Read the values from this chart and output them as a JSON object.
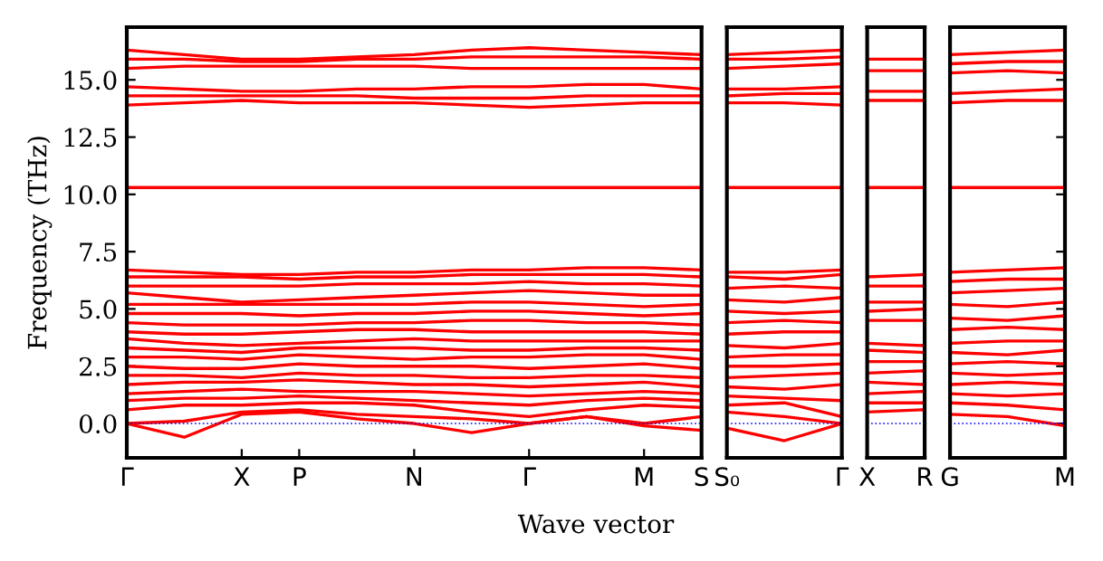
{
  "chart_data": [
    {
      "type": "line",
      "ylabel": "Frequency (THz)",
      "xlabel": "Wave vector",
      "ylim": [
        -1.5,
        17.3
      ],
      "categories": [
        "Γ",
        null,
        "X",
        "P",
        null,
        "N",
        null,
        "Γ",
        null,
        "M",
        "S"
      ],
      "yticks": [
        {
          "value": 0,
          "label": "0.0"
        },
        2.5,
        {
          "value": 5,
          "label": "5.0"
        },
        7.5,
        {
          "value": 10,
          "label": "10.0"
        },
        12.5,
        {
          "value": 15,
          "label": "15.0"
        }
      ],
      "ref_lines": [
        {
          "axis": "y",
          "value": 0,
          "color": "#0000ff",
          "line_style": "dotted"
        }
      ],
      "series": [
        {
          "color": "#ff0000",
          "values": [
            0,
            -0.6,
            0.4,
            0.5,
            0.2,
            0,
            -0.4,
            0,
            0.3,
            -0.1,
            -0.3
          ]
        },
        {
          "color": "#ff0000",
          "values": [
            0,
            0.1,
            0.5,
            0.6,
            0.4,
            0.3,
            0.2,
            0,
            0.3,
            0,
            0.3
          ]
        },
        {
          "color": "#ff0000",
          "values": [
            0.6,
            0.8,
            0.8,
            0.9,
            0.9,
            0.8,
            0.5,
            0.3,
            0.6,
            0.8,
            0.7
          ]
        },
        {
          "color": "#ff0000",
          "values": [
            1,
            1.1,
            1.1,
            1.2,
            1.1,
            1,
            0.9,
            0.8,
            1,
            1.1,
            1
          ]
        },
        {
          "color": "#ff0000",
          "values": [
            1.3,
            1.4,
            1.5,
            1.4,
            1.4,
            1.4,
            1.3,
            1.2,
            1.3,
            1.4,
            1.3
          ]
        },
        {
          "color": "#ff0000",
          "values": [
            1.7,
            1.8,
            1.8,
            1.9,
            1.8,
            1.7,
            1.7,
            1.6,
            1.7,
            1.8,
            1.6
          ]
        },
        {
          "color": "#ff0000",
          "values": [
            2.1,
            2.1,
            2,
            2.2,
            2.1,
            2.1,
            2,
            2,
            2.1,
            2.1,
            2
          ]
        },
        {
          "color": "#ff0000",
          "values": [
            2.5,
            2.4,
            2.4,
            2.6,
            2.5,
            2.5,
            2.5,
            2.4,
            2.5,
            2.6,
            2.4
          ]
        },
        {
          "color": "#ff0000",
          "values": [
            2.9,
            2.9,
            2.8,
            3,
            2.9,
            2.8,
            2.9,
            2.9,
            3,
            3,
            2.8
          ]
        },
        {
          "color": "#ff0000",
          "values": [
            3.3,
            3.2,
            3.1,
            3.3,
            3.3,
            3.3,
            3.2,
            3.2,
            3.3,
            3.3,
            3.2
          ]
        },
        {
          "color": "#ff0000",
          "values": [
            3.7,
            3.5,
            3.4,
            3.5,
            3.6,
            3.7,
            3.6,
            3.6,
            3.6,
            3.6,
            3.6
          ]
        },
        {
          "color": "#ff0000",
          "values": [
            4,
            3.9,
            3.9,
            4,
            4.1,
            4.1,
            4,
            4,
            4,
            4,
            3.9
          ]
        },
        {
          "color": "#ff0000",
          "values": [
            4.4,
            4.3,
            4.3,
            4.3,
            4.4,
            4.4,
            4.5,
            4.5,
            4.4,
            4.4,
            4.3
          ]
        },
        {
          "color": "#ff0000",
          "values": [
            4.8,
            4.8,
            4.8,
            4.7,
            4.8,
            4.8,
            4.9,
            4.9,
            4.8,
            4.7,
            4.8
          ]
        },
        {
          "color": "#ff0000",
          "values": [
            5.2,
            5.2,
            5.2,
            5.2,
            5.2,
            5.2,
            5.3,
            5.3,
            5.2,
            5.1,
            5.2
          ]
        },
        {
          "color": "#ff0000",
          "values": [
            5.7,
            5.5,
            5.3,
            5.4,
            5.5,
            5.6,
            5.7,
            5.8,
            5.7,
            5.6,
            5.6
          ]
        },
        {
          "color": "#ff0000",
          "values": [
            6,
            6,
            6,
            6,
            6.1,
            6.1,
            6.1,
            6.2,
            6.1,
            6.1,
            6
          ]
        },
        {
          "color": "#ff0000",
          "values": [
            6.4,
            6.4,
            6.4,
            6.3,
            6.4,
            6.4,
            6.5,
            6.5,
            6.5,
            6.5,
            6.4
          ]
        },
        {
          "color": "#ff0000",
          "values": [
            6.7,
            6.6,
            6.5,
            6.5,
            6.6,
            6.6,
            6.7,
            6.7,
            6.8,
            6.8,
            6.7
          ]
        },
        {
          "color": "#ff0000",
          "values": [
            10.3,
            10.3,
            10.3,
            10.3,
            10.3,
            10.3,
            10.3,
            10.3,
            10.3,
            10.3,
            10.3
          ]
        },
        {
          "color": "#ff0000",
          "values": [
            13.9,
            14,
            14.1,
            14,
            14,
            14,
            13.9,
            13.8,
            13.9,
            14,
            14
          ]
        },
        {
          "color": "#ff0000",
          "values": [
            14.3,
            14.3,
            14.3,
            14.3,
            14.3,
            14.2,
            14.2,
            14.2,
            14.3,
            14.3,
            14.3
          ]
        },
        {
          "color": "#ff0000",
          "values": [
            14.7,
            14.6,
            14.5,
            14.5,
            14.6,
            14.6,
            14.7,
            14.7,
            14.8,
            14.8,
            14.6
          ]
        },
        {
          "color": "#ff0000",
          "values": [
            15.5,
            15.6,
            15.6,
            15.6,
            15.6,
            15.6,
            15.5,
            15.5,
            15.5,
            15.5,
            15.5
          ]
        },
        {
          "color": "#ff0000",
          "values": [
            15.9,
            15.9,
            15.8,
            15.8,
            15.9,
            15.9,
            16,
            16,
            16,
            16,
            15.9
          ]
        },
        {
          "color": "#ff0000",
          "values": [
            16.3,
            16.1,
            15.9,
            15.9,
            16,
            16.1,
            16.3,
            16.4,
            16.3,
            16.2,
            16.1
          ]
        }
      ]
    },
    {
      "type": "line",
      "ylim": [
        -1.5,
        17.3
      ],
      "tick_labels": "x",
      "categories": [
        "S₀",
        null,
        "Γ"
      ],
      "yticks": [
        {
          "value": 0,
          "label": null
        },
        {
          "value": 2.5,
          "label": null
        },
        {
          "value": 5,
          "label": null
        },
        {
          "value": 7.5,
          "label": null
        },
        {
          "value": 10,
          "label": null
        },
        {
          "value": 12.5,
          "label": null
        },
        {
          "value": 15,
          "label": null
        }
      ],
      "ref_lines": [
        {
          "axis": "y",
          "value": 0,
          "color": "#0000ff",
          "line_style": "dotted"
        }
      ],
      "series": [
        {
          "color": "#ff0000",
          "values": [
            -0.2,
            -0.75,
            0
          ]
        },
        {
          "color": "#ff0000",
          "values": [
            0.5,
            0.3,
            0
          ]
        },
        {
          "color": "#ff0000",
          "values": [
            0.8,
            0.9,
            0.3
          ]
        },
        {
          "color": "#ff0000",
          "values": [
            1.2,
            1.1,
            1
          ]
        },
        {
          "color": "#ff0000",
          "values": [
            1.6,
            1.5,
            1.7
          ]
        },
        {
          "color": "#ff0000",
          "values": [
            2,
            2.1,
            2.2
          ]
        },
        {
          "color": "#ff0000",
          "values": [
            2.5,
            2.5,
            2.6
          ]
        },
        {
          "color": "#ff0000",
          "values": [
            2.9,
            3,
            3
          ]
        },
        {
          "color": "#ff0000",
          "values": [
            3.4,
            3.3,
            3.5
          ]
        },
        {
          "color": "#ff0000",
          "values": [
            3.9,
            4,
            4
          ]
        },
        {
          "color": "#ff0000",
          "values": [
            4.4,
            4.5,
            4.4
          ]
        },
        {
          "color": "#ff0000",
          "values": [
            4.9,
            4.8,
            4.9
          ]
        },
        {
          "color": "#ff0000",
          "values": [
            5.4,
            5.3,
            5.5
          ]
        },
        {
          "color": "#ff0000",
          "values": [
            5.9,
            6,
            5.9
          ]
        },
        {
          "color": "#ff0000",
          "values": [
            6.4,
            6.3,
            6.5
          ]
        },
        {
          "color": "#ff0000",
          "values": [
            6.6,
            6.6,
            6.7
          ]
        },
        {
          "color": "#ff0000",
          "values": [
            10.3,
            10.3,
            10.3
          ]
        },
        {
          "color": "#ff0000",
          "values": [
            14,
            14,
            13.9
          ]
        },
        {
          "color": "#ff0000",
          "values": [
            14.3,
            14.4,
            14.4
          ]
        },
        {
          "color": "#ff0000",
          "values": [
            14.6,
            14.6,
            14.7
          ]
        },
        {
          "color": "#ff0000",
          "values": [
            15.5,
            15.6,
            15.7
          ]
        },
        {
          "color": "#ff0000",
          "values": [
            15.9,
            15.9,
            16
          ]
        },
        {
          "color": "#ff0000",
          "values": [
            16.1,
            16.2,
            16.3
          ]
        }
      ]
    },
    {
      "type": "line",
      "ylim": [
        -1.5,
        17.3
      ],
      "tick_labels": "x",
      "categories": [
        "X",
        "R"
      ],
      "yticks": [
        {
          "value": 0,
          "label": null
        },
        {
          "value": 2.5,
          "label": null
        },
        {
          "value": 5,
          "label": null
        },
        {
          "value": 7.5,
          "label": null
        },
        {
          "value": 10,
          "label": null
        },
        {
          "value": 12.5,
          "label": null
        },
        {
          "value": 15,
          "label": null
        }
      ],
      "ref_lines": [
        {
          "axis": "y",
          "value": 0,
          "color": "#0000ff",
          "line_style": "dotted"
        }
      ],
      "series": [
        {
          "color": "#ff0000",
          "values": [
            0.5,
            0.6
          ]
        },
        {
          "color": "#ff0000",
          "values": [
            0.9,
            0.9
          ]
        },
        {
          "color": "#ff0000",
          "values": [
            1.3,
            1.4
          ]
        },
        {
          "color": "#ff0000",
          "values": [
            1.8,
            1.7
          ]
        },
        {
          "color": "#ff0000",
          "values": [
            2.2,
            2.3
          ]
        },
        {
          "color": "#ff0000",
          "values": [
            2.7,
            2.7
          ]
        },
        {
          "color": "#ff0000",
          "values": [
            3.2,
            3.1
          ]
        },
        {
          "color": "#ff0000",
          "values": [
            3.5,
            3.4
          ]
        },
        {
          "color": "#ff0000",
          "values": [
            4.5,
            4.5
          ]
        },
        {
          "color": "#ff0000",
          "values": [
            4.9,
            5
          ]
        },
        {
          "color": "#ff0000",
          "values": [
            5.3,
            5.3
          ]
        },
        {
          "color": "#ff0000",
          "values": [
            6,
            6
          ]
        },
        {
          "color": "#ff0000",
          "values": [
            6.4,
            6.5
          ]
        },
        {
          "color": "#ff0000",
          "values": [
            10.3,
            10.3
          ]
        },
        {
          "color": "#ff0000",
          "values": [
            14.1,
            14.1
          ]
        },
        {
          "color": "#ff0000",
          "values": [
            14.5,
            14.5
          ]
        },
        {
          "color": "#ff0000",
          "values": [
            15.4,
            15.4
          ]
        },
        {
          "color": "#ff0000",
          "values": [
            15.9,
            15.9
          ]
        }
      ]
    },
    {
      "type": "line",
      "ylim": [
        -1.5,
        17.3
      ],
      "tick_labels": "x",
      "categories": [
        "G",
        null,
        "M"
      ],
      "yticks": [
        {
          "value": 0,
          "label": null
        },
        {
          "value": 2.5,
          "label": null
        },
        {
          "value": 5,
          "label": null
        },
        {
          "value": 7.5,
          "label": null
        },
        {
          "value": 10,
          "label": null
        },
        {
          "value": 12.5,
          "label": null
        },
        {
          "value": 15,
          "label": null
        }
      ],
      "ref_lines": [
        {
          "axis": "y",
          "value": 0,
          "color": "#0000ff",
          "line_style": "dotted"
        }
      ],
      "series": [
        {
          "color": "#ff0000",
          "values": [
            0.4,
            0.3,
            -0.1
          ]
        },
        {
          "color": "#ff0000",
          "values": [
            0.9,
            0.8,
            0.6
          ]
        },
        {
          "color": "#ff0000",
          "values": [
            1.3,
            1.2,
            1.3
          ]
        },
        {
          "color": "#ff0000",
          "values": [
            1.7,
            1.8,
            1.7
          ]
        },
        {
          "color": "#ff0000",
          "values": [
            2.2,
            2.1,
            2.2
          ]
        },
        {
          "color": "#ff0000",
          "values": [
            2.6,
            2.7,
            2.6
          ]
        },
        {
          "color": "#ff0000",
          "values": [
            3.1,
            3,
            3.2
          ]
        },
        {
          "color": "#ff0000",
          "values": [
            3.5,
            3.6,
            3.6
          ]
        },
        {
          "color": "#ff0000",
          "values": [
            4.1,
            4.2,
            4.1
          ]
        },
        {
          "color": "#ff0000",
          "values": [
            4.6,
            4.5,
            4.7
          ]
        },
        {
          "color": "#ff0000",
          "values": [
            5.2,
            5.1,
            5.3
          ]
        },
        {
          "color": "#ff0000",
          "values": [
            5.7,
            5.8,
            5.9
          ]
        },
        {
          "color": "#ff0000",
          "values": [
            6.2,
            6.3,
            6.3
          ]
        },
        {
          "color": "#ff0000",
          "values": [
            6.6,
            6.7,
            6.8
          ]
        },
        {
          "color": "#ff0000",
          "values": [
            10.3,
            10.3,
            10.3
          ]
        },
        {
          "color": "#ff0000",
          "values": [
            14,
            14.1,
            14.1
          ]
        },
        {
          "color": "#ff0000",
          "values": [
            14.4,
            14.5,
            14.6
          ]
        },
        {
          "color": "#ff0000",
          "values": [
            15.3,
            15.4,
            15.3
          ]
        },
        {
          "color": "#ff0000",
          "values": [
            15.7,
            15.8,
            15.8
          ]
        },
        {
          "color": "#ff0000",
          "values": [
            16.1,
            16.2,
            16.3
          ]
        }
      ]
    }
  ]
}
